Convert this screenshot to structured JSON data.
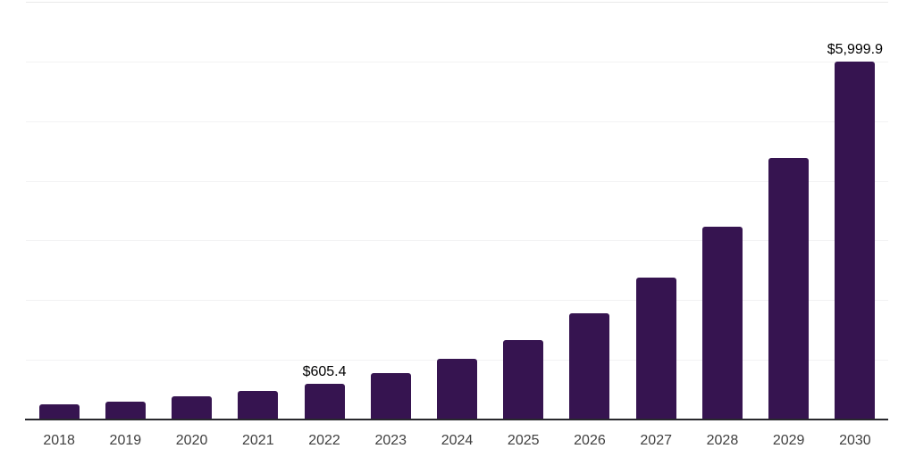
{
  "chart_data": {
    "type": "bar",
    "title": "",
    "xlabel": "",
    "ylabel": "",
    "categories": [
      "2018",
      "2019",
      "2020",
      "2021",
      "2022",
      "2023",
      "2024",
      "2025",
      "2026",
      "2027",
      "2028",
      "2029",
      "2030"
    ],
    "values": [
      250,
      300,
      385,
      475,
      605.4,
      775,
      1015,
      1330,
      1775,
      2375,
      3225,
      4390,
      5999.9
    ],
    "data_labels": [
      {
        "index": 4,
        "text": "$605.4"
      },
      {
        "index": 12,
        "text": "$5,999.9"
      }
    ],
    "ylim": [
      0,
      7000
    ],
    "grid_step": 1000,
    "grid": true,
    "legend": false,
    "y_axis_labels": false,
    "colors": {
      "bar": "#361450",
      "gridline": "#f2f2f3",
      "top_border": "#e9e9ea",
      "axis_line": "#28282d",
      "tick_label": "#404040",
      "data_label": "#000000",
      "background": "#ffffff"
    }
  }
}
